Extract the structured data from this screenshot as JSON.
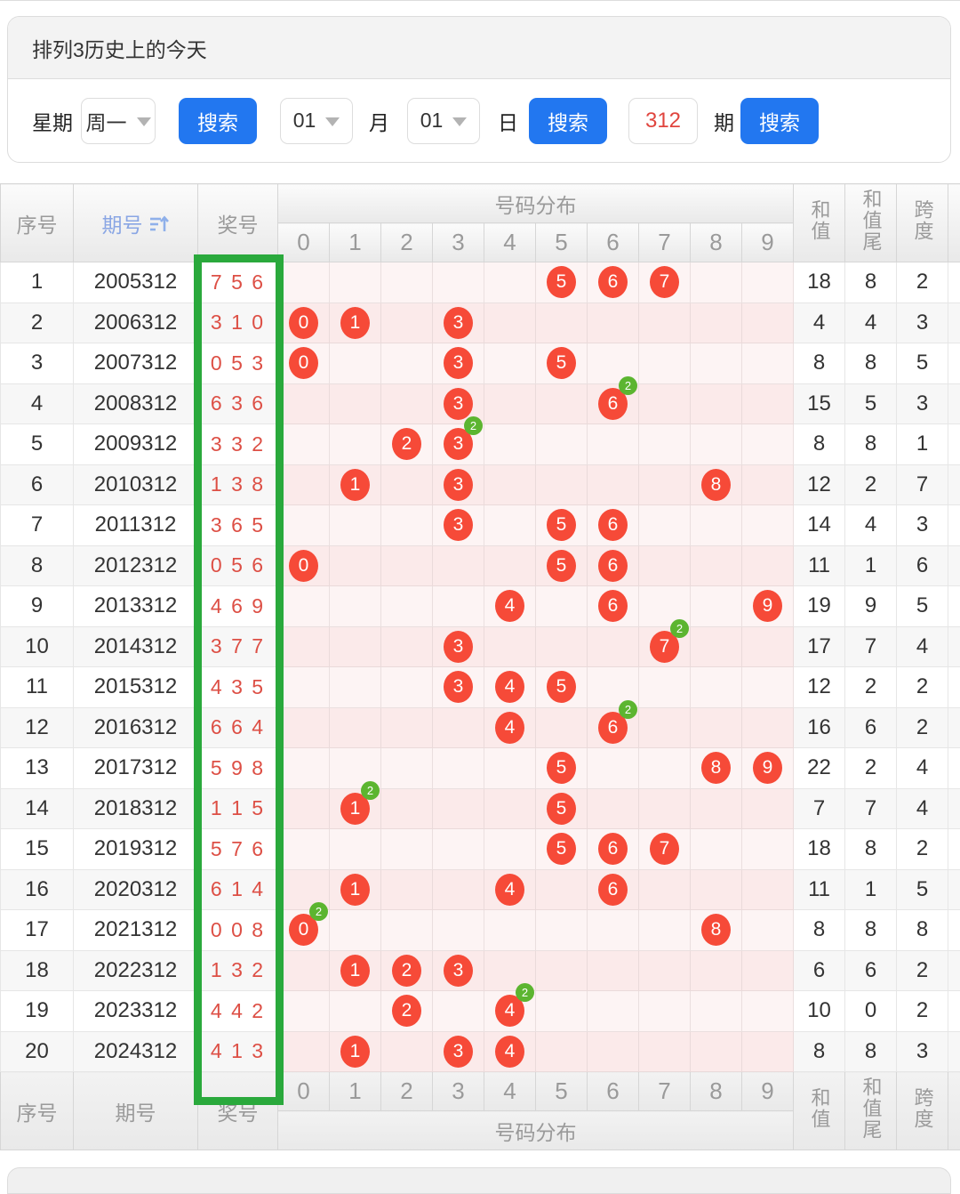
{
  "panel": {
    "title": "排列3历史上的今天"
  },
  "search": {
    "week_label": "星期",
    "week_value": "周一",
    "button_label": "搜索",
    "month_value": "01",
    "month_label": "月",
    "day_value": "01",
    "day_label": "日",
    "issue_value": "312",
    "issue_label": "期"
  },
  "colors": {
    "button_blue": "#2277f0",
    "issue_red": "#e0453e",
    "header_blue": "#8aa6e4",
    "prize_red": "#dd4f45",
    "ball_red": "#f64a38",
    "badge_green": "#5cb530",
    "frame_green": "#2aa93c"
  },
  "table": {
    "headers": {
      "seq": "序号",
      "issue": "期号",
      "prize": "奖号",
      "distribution": "号码分布",
      "digits": [
        "0",
        "1",
        "2",
        "3",
        "4",
        "5",
        "6",
        "7",
        "8",
        "9"
      ],
      "sum": "和值",
      "sum_tail": "和值尾",
      "span": "跨度"
    },
    "rows": [
      {
        "seq": "1",
        "issue": "2005312",
        "prize": "7 5 6",
        "balls": [
          5,
          6,
          7
        ],
        "badges": {},
        "sum": "18",
        "tail": "8",
        "span": "2"
      },
      {
        "seq": "2",
        "issue": "2006312",
        "prize": "3 1 0",
        "balls": [
          0,
          1,
          3
        ],
        "badges": {},
        "sum": "4",
        "tail": "4",
        "span": "3"
      },
      {
        "seq": "3",
        "issue": "2007312",
        "prize": "0 5 3",
        "balls": [
          0,
          3,
          5
        ],
        "badges": {},
        "sum": "8",
        "tail": "8",
        "span": "5"
      },
      {
        "seq": "4",
        "issue": "2008312",
        "prize": "6 3 6",
        "balls": [
          3,
          6
        ],
        "badges": {
          "6": "2"
        },
        "sum": "15",
        "tail": "5",
        "span": "3"
      },
      {
        "seq": "5",
        "issue": "2009312",
        "prize": "3 3 2",
        "balls": [
          2,
          3
        ],
        "badges": {
          "3": "2"
        },
        "sum": "8",
        "tail": "8",
        "span": "1"
      },
      {
        "seq": "6",
        "issue": "2010312",
        "prize": "1 3 8",
        "balls": [
          1,
          3,
          8
        ],
        "badges": {},
        "sum": "12",
        "tail": "2",
        "span": "7"
      },
      {
        "seq": "7",
        "issue": "2011312",
        "prize": "3 6 5",
        "balls": [
          3,
          5,
          6
        ],
        "badges": {},
        "sum": "14",
        "tail": "4",
        "span": "3"
      },
      {
        "seq": "8",
        "issue": "2012312",
        "prize": "0 5 6",
        "balls": [
          0,
          5,
          6
        ],
        "badges": {},
        "sum": "11",
        "tail": "1",
        "span": "6"
      },
      {
        "seq": "9",
        "issue": "2013312",
        "prize": "4 6 9",
        "balls": [
          4,
          6,
          9
        ],
        "badges": {},
        "sum": "19",
        "tail": "9",
        "span": "5"
      },
      {
        "seq": "10",
        "issue": "2014312",
        "prize": "3 7 7",
        "balls": [
          3,
          7
        ],
        "badges": {
          "7": "2"
        },
        "sum": "17",
        "tail": "7",
        "span": "4"
      },
      {
        "seq": "11",
        "issue": "2015312",
        "prize": "4 3 5",
        "balls": [
          3,
          4,
          5
        ],
        "badges": {},
        "sum": "12",
        "tail": "2",
        "span": "2"
      },
      {
        "seq": "12",
        "issue": "2016312",
        "prize": "6 6 4",
        "balls": [
          4,
          6
        ],
        "badges": {
          "6": "2"
        },
        "sum": "16",
        "tail": "6",
        "span": "2"
      },
      {
        "seq": "13",
        "issue": "2017312",
        "prize": "5 9 8",
        "balls": [
          5,
          8,
          9
        ],
        "badges": {},
        "sum": "22",
        "tail": "2",
        "span": "4"
      },
      {
        "seq": "14",
        "issue": "2018312",
        "prize": "1 1 5",
        "balls": [
          1,
          5
        ],
        "badges": {
          "1": "2"
        },
        "sum": "7",
        "tail": "7",
        "span": "4"
      },
      {
        "seq": "15",
        "issue": "2019312",
        "prize": "5 7 6",
        "balls": [
          5,
          6,
          7
        ],
        "badges": {},
        "sum": "18",
        "tail": "8",
        "span": "2"
      },
      {
        "seq": "16",
        "issue": "2020312",
        "prize": "6 1 4",
        "balls": [
          1,
          4,
          6
        ],
        "badges": {},
        "sum": "11",
        "tail": "1",
        "span": "5"
      },
      {
        "seq": "17",
        "issue": "2021312",
        "prize": "0 0 8",
        "balls": [
          0,
          8
        ],
        "badges": {
          "0": "2"
        },
        "sum": "8",
        "tail": "8",
        "span": "8"
      },
      {
        "seq": "18",
        "issue": "2022312",
        "prize": "1 3 2",
        "balls": [
          1,
          2,
          3
        ],
        "badges": {},
        "sum": "6",
        "tail": "6",
        "span": "2"
      },
      {
        "seq": "19",
        "issue": "2023312",
        "prize": "4 4 2",
        "balls": [
          2,
          4
        ],
        "badges": {
          "4": "2"
        },
        "sum": "10",
        "tail": "0",
        "span": "2"
      },
      {
        "seq": "20",
        "issue": "2024312",
        "prize": "4 1 3",
        "balls": [
          1,
          3,
          4
        ],
        "badges": {},
        "sum": "8",
        "tail": "8",
        "span": "3"
      }
    ]
  }
}
